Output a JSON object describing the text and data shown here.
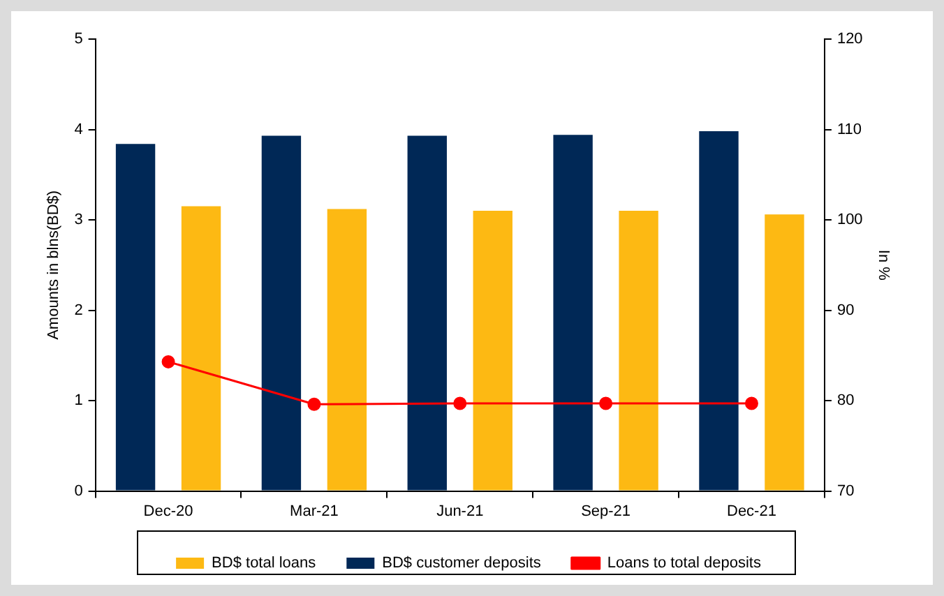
{
  "chart_data": {
    "type": "bar",
    "categories": [
      "Dec-20",
      "Mar-21",
      "Jun-21",
      "Sep-21",
      "Dec-21"
    ],
    "ylabel": "Amounts in blns(BD$)",
    "y2label": "In %",
    "ylim": [
      0,
      5
    ],
    "yticks": [
      0,
      1,
      2,
      3,
      4,
      5
    ],
    "y2lim": [
      70,
      120
    ],
    "y2ticks": [
      70,
      80,
      90,
      100,
      110,
      120
    ],
    "grid": false,
    "legend": "bottom",
    "marker": "circle",
    "line_style": "solid",
    "series": [
      {
        "name": "BD$ customer deposits",
        "color": "#002856",
        "values": [
          3.84,
          3.93,
          3.93,
          3.94,
          3.98
        ]
      },
      {
        "name": "BD$ total loans",
        "color": "#fdb913",
        "values": [
          3.15,
          3.12,
          3.1,
          3.1,
          3.06
        ]
      },
      {
        "name": "Loans to total deposits",
        "type": "line",
        "axis": "y2",
        "color": "#ff0000",
        "values": [
          84.3,
          79.6,
          79.7,
          79.7,
          79.7
        ]
      }
    ]
  }
}
